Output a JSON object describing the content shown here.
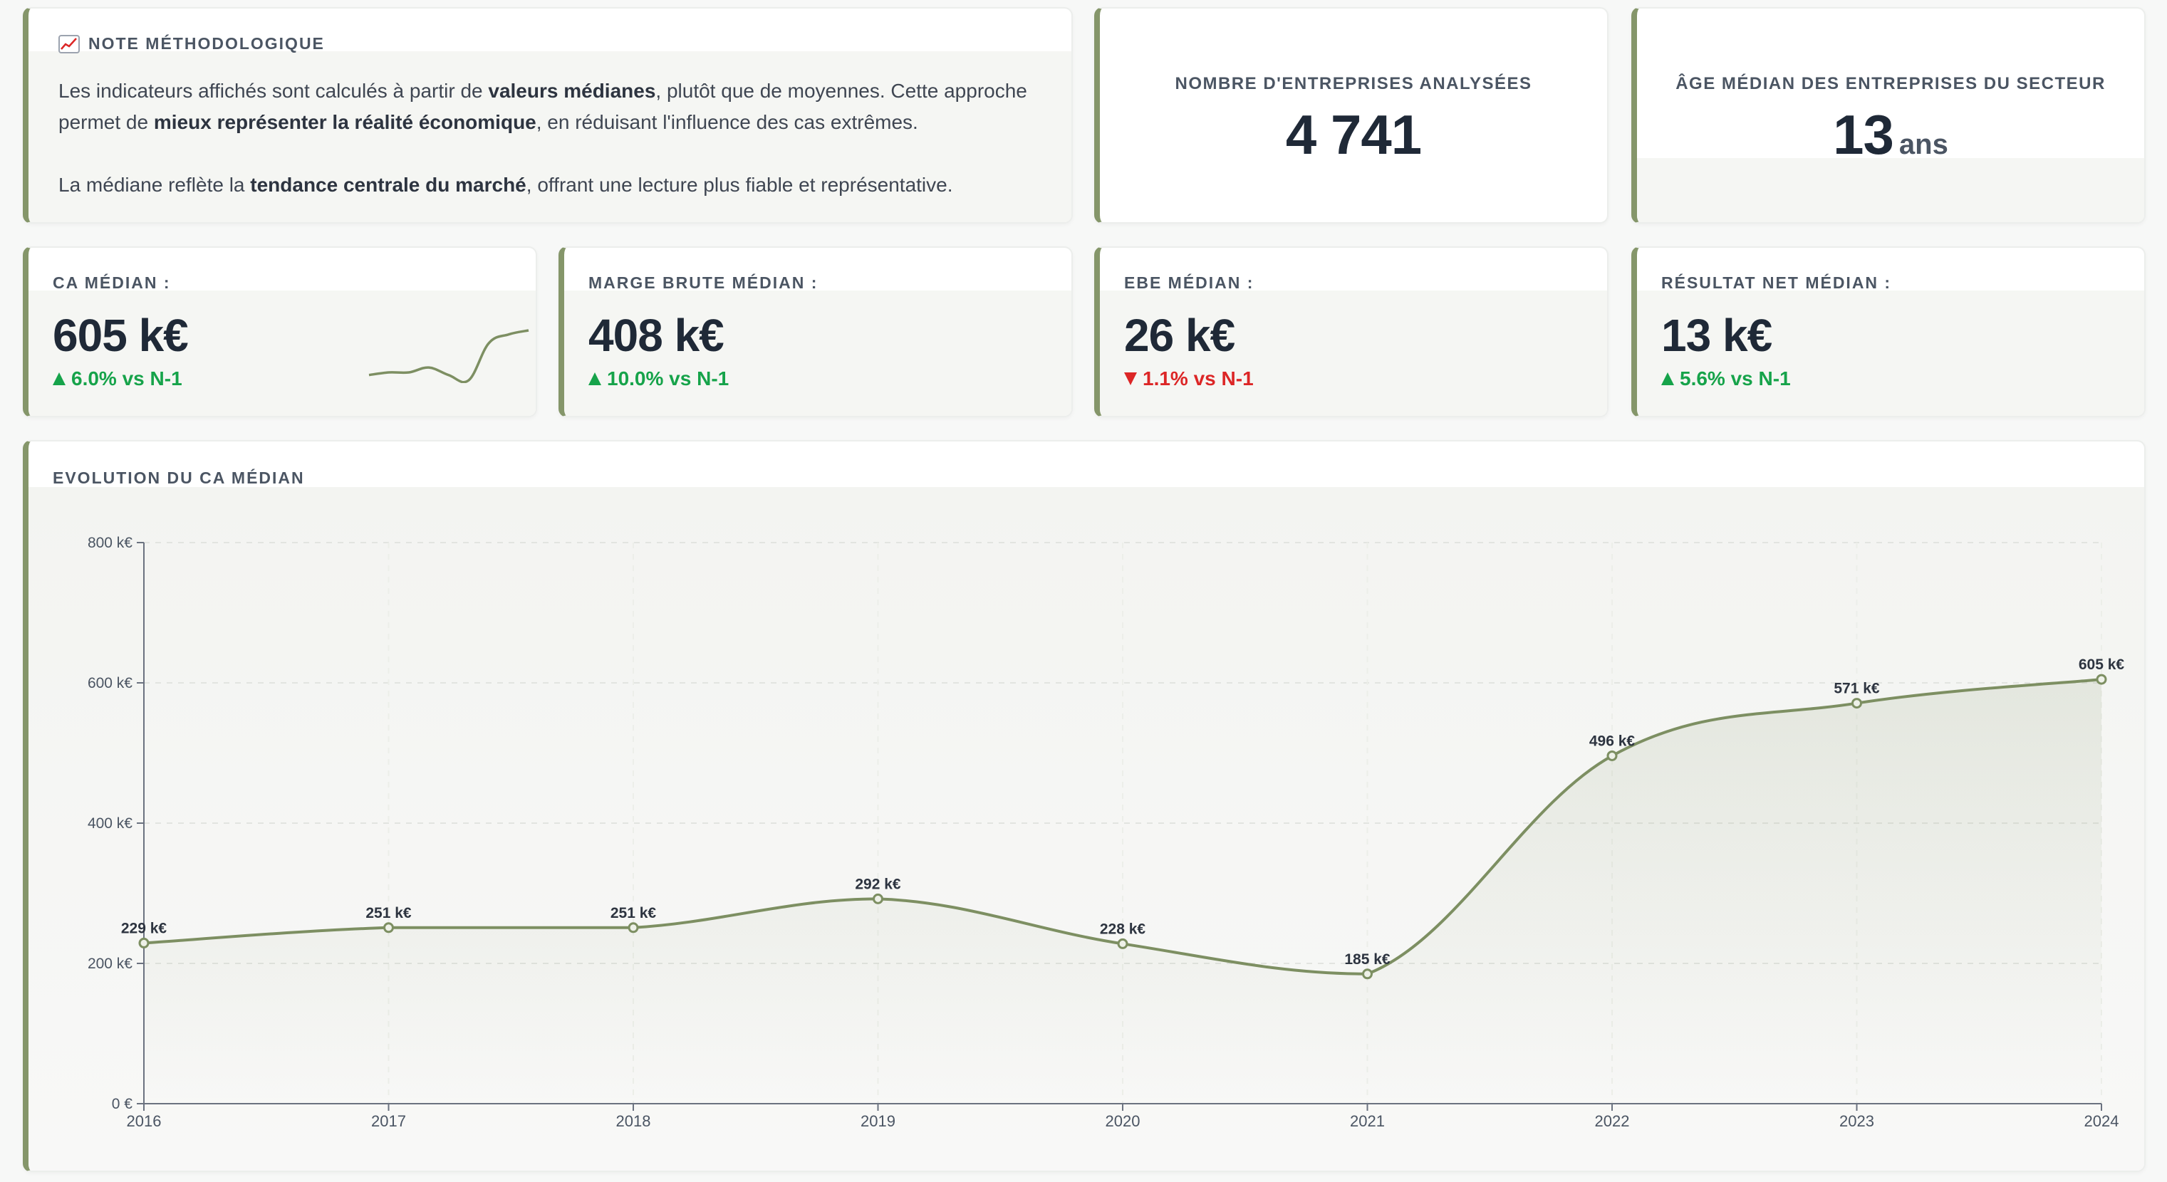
{
  "note": {
    "icon": "chart-increasing-icon",
    "title": "NOTE MÉTHODOLOGIQUE",
    "p1": [
      {
        "t": "Les indicateurs affichés sont calculés à partir de "
      },
      {
        "t": "valeurs médianes",
        "b": true
      },
      {
        "t": ", plutôt que de moyennes. Cette approche permet de "
      },
      {
        "t": "mieux représenter la réalité économique",
        "b": true
      },
      {
        "t": ", en réduisant l'influence des cas extrêmes."
      }
    ],
    "p2": [
      {
        "t": "La médiane reflète la "
      },
      {
        "t": "tendance centrale du marché",
        "b": true
      },
      {
        "t": ", offrant une lecture plus fiable et représentative."
      }
    ]
  },
  "stats": {
    "companies": {
      "label": "NOMBRE D'ENTREPRISES ANALYSÉES",
      "value": "4 741"
    },
    "age": {
      "label": "ÂGE MÉDIAN DES ENTREPRISES DU SECTEUR",
      "value": "13",
      "unit": "ans"
    }
  },
  "kpis": {
    "ca": {
      "label": "CA MÉDIAN :",
      "value": "605 k€",
      "delta": "6.0% vs N-1",
      "direction": "up"
    },
    "mb": {
      "label": "MARGE BRUTE MÉDIAN :",
      "value": "408 k€",
      "delta": "10.0% vs N-1",
      "direction": "up"
    },
    "ebe": {
      "label": "EBE MÉDIAN :",
      "value": "26 k€",
      "delta": "1.1% vs N-1",
      "direction": "down"
    },
    "rn": {
      "label": "RÉSULTAT NET MÉDIAN :",
      "value": "13 k€",
      "delta": "5.6% vs N-1",
      "direction": "up"
    }
  },
  "colors": {
    "accent": "#85966a",
    "line": "#7d8f62",
    "up": "#16a34a",
    "down": "#dc2626"
  },
  "chart_data": {
    "type": "area",
    "title": "EVOLUTION DU CA MÉDIAN",
    "x": [
      "2016",
      "2017",
      "2018",
      "2019",
      "2020",
      "2021",
      "2022",
      "2023",
      "2024"
    ],
    "values": [
      229,
      251,
      251,
      292,
      228,
      185,
      496,
      571,
      605
    ],
    "data_labels": [
      "229 k€",
      "251 k€",
      "251 k€",
      "292 k€",
      "228 k€",
      "185 k€",
      "496 k€",
      "571 k€",
      "605 k€"
    ],
    "ylim": [
      0,
      800
    ],
    "y_ticks": [
      0,
      200,
      400,
      600,
      800
    ],
    "y_tick_labels": [
      "0 €",
      "200 k€",
      "400 k€",
      "600 k€",
      "800 k€"
    ],
    "grid": true,
    "smooth": true
  }
}
